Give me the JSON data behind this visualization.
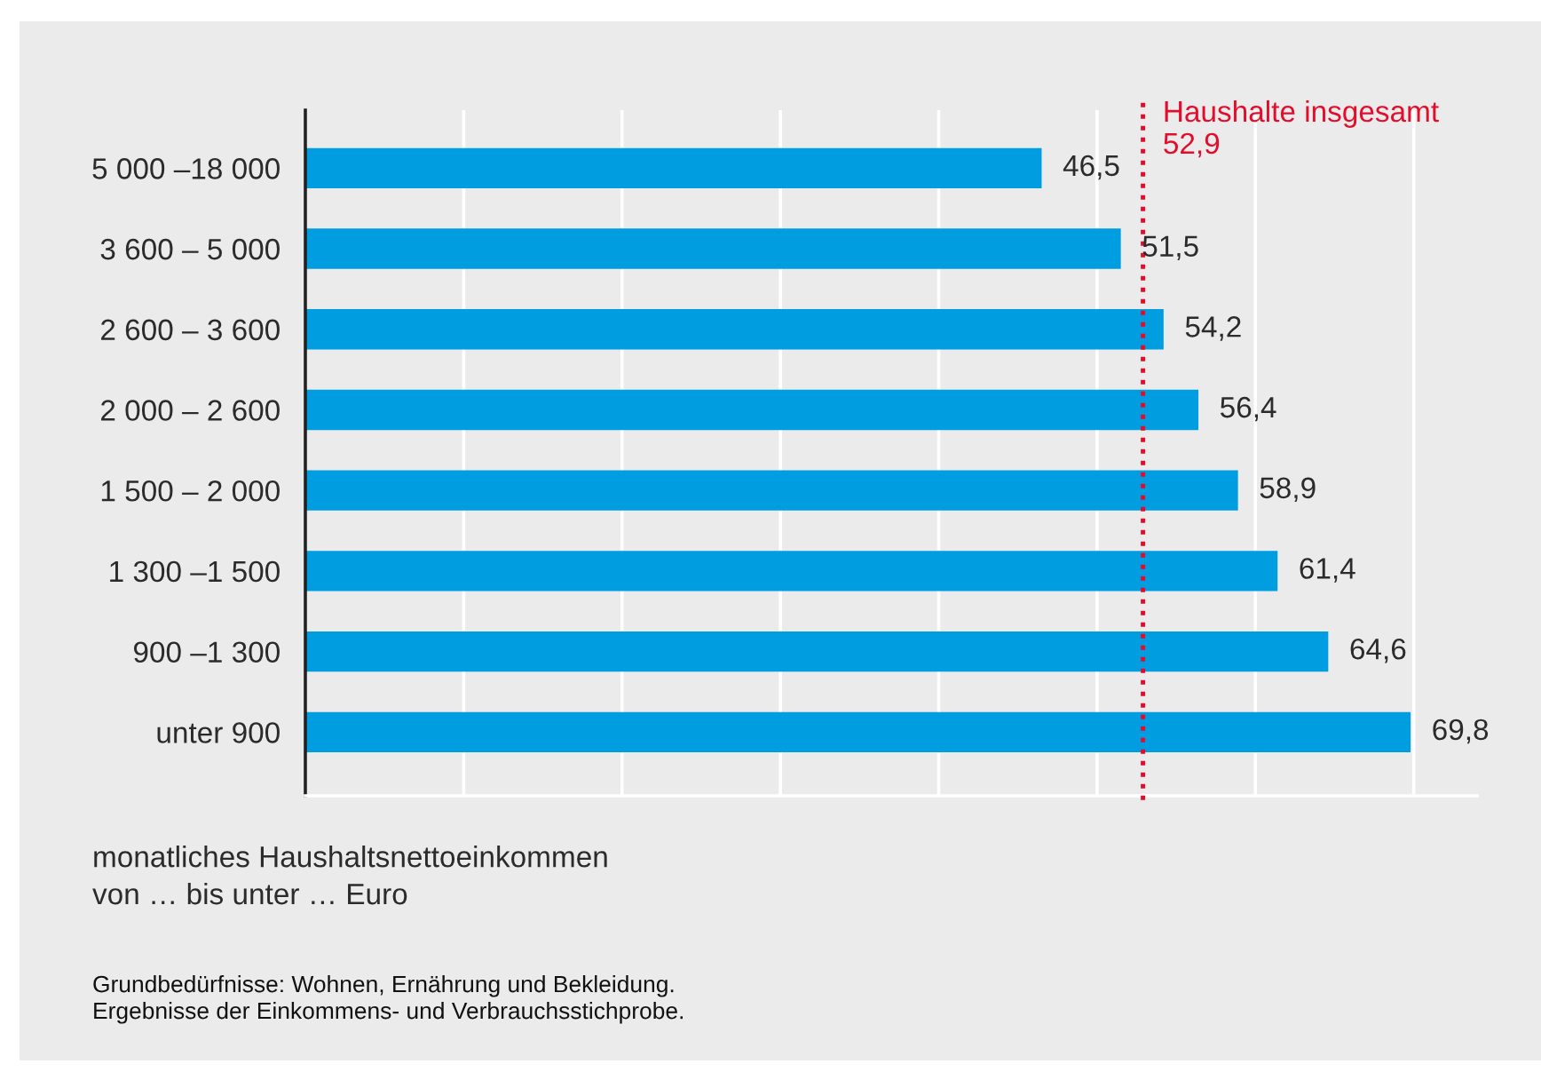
{
  "chart_data": {
    "type": "bar",
    "orientation": "horizontal",
    "categories": [
      "5 000 –18 000",
      "3 600 – 5 000",
      "2 600 – 3 600",
      "2 000 – 2 600",
      "1 500 – 2 000",
      "1 300 –1 500",
      "900 –1 300",
      "unter 900"
    ],
    "values": [
      46.5,
      51.5,
      54.2,
      56.4,
      58.9,
      61.4,
      64.6,
      69.8
    ],
    "value_labels": [
      "46,5",
      "51,5",
      "54,2",
      "56,4",
      "58,9",
      "61,4",
      "64,6",
      "69,8"
    ],
    "color": "#009ee0",
    "xlim": [
      0,
      74
    ],
    "xticks": [
      {
        "value": 0,
        "label": null
      },
      {
        "value": 10,
        "label": null
      },
      {
        "value": 20,
        "label": null
      },
      {
        "value": 30,
        "label": null
      },
      {
        "value": 40,
        "label": null
      },
      {
        "value": 50,
        "label": null
      },
      {
        "value": 60,
        "label": null
      },
      {
        "value": 70,
        "label": null
      }
    ],
    "grid": "x",
    "tick_labels": "y",
    "ylabel": "monatliches Haushaltsnettoeinkommen\nvon … bis unter … Euro",
    "ref_lines": [
      {
        "axis": "x",
        "value": 52.9,
        "label": "Haushalte insgesamt\n52,9",
        "color": "#e30d2b",
        "line_style": "dotted"
      }
    ],
    "annotations": [
      "Grundbedürfnisse: Wohnen, Ernährung und Bekleidung.",
      "Ergebnisse der Einkommens- und Verbrauchsstichprobe."
    ]
  }
}
